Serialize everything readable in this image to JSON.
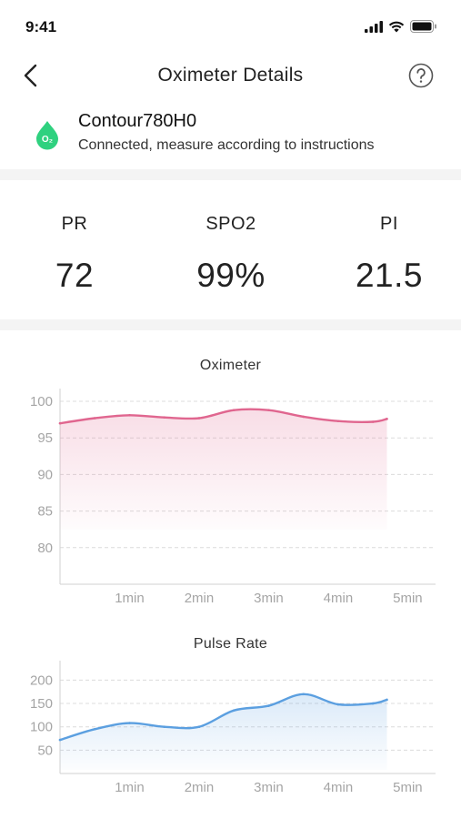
{
  "status_bar": {
    "time": "9:41",
    "signal_icon": "cellular-signal-icon",
    "wifi_icon": "wifi-icon",
    "battery_icon": "battery-icon"
  },
  "nav": {
    "title": "Oximeter Details",
    "back_icon": "chevron-left-icon",
    "help_icon": "question-circle-icon"
  },
  "device": {
    "icon": "o2-drop-icon",
    "icon_text": "O₂",
    "name": "Contour780H0",
    "status": "Connected, measure according to instructions"
  },
  "metrics": [
    {
      "label": "PR",
      "value": "72"
    },
    {
      "label": "SPO2",
      "value": "99%"
    },
    {
      "label": "PI",
      "value": "21.5"
    }
  ],
  "colors": {
    "oximeter_line": "#e0668f",
    "pulse_line": "#5b9fe0",
    "divider": "#f4f4f4"
  },
  "chart_data": [
    {
      "type": "line",
      "title": "Oximeter",
      "xlabel": "",
      "ylabel": "",
      "x_ticks": [
        "1min",
        "2min",
        "3min",
        "4min",
        "5min"
      ],
      "y_ticks": [
        100,
        95,
        90,
        85,
        80
      ],
      "ylim": [
        75,
        101
      ],
      "xlim": [
        0,
        5.4
      ],
      "grid": "horizontal-dashed",
      "area_fill": true,
      "series": [
        {
          "x": [
            0,
            0.5,
            1.0,
            1.5,
            2.0,
            2.5,
            3.0,
            3.5,
            4.0,
            4.5,
            4.7
          ],
          "y": [
            97.0,
            97.7,
            98.1,
            97.8,
            97.7,
            98.8,
            98.8,
            97.9,
            97.3,
            97.2,
            97.6
          ]
        }
      ]
    },
    {
      "type": "line",
      "title": "Pulse Rate",
      "xlabel": "",
      "ylabel": "",
      "x_ticks": [
        "1min",
        "2min",
        "3min",
        "4min",
        "5min"
      ],
      "y_ticks": [
        200,
        150,
        100,
        50
      ],
      "ylim": [
        0,
        230
      ],
      "xlim": [
        0,
        5.4
      ],
      "grid": "horizontal-dashed",
      "area_fill": true,
      "series": [
        {
          "x": [
            0,
            0.5,
            1.0,
            1.5,
            2.0,
            2.5,
            3.0,
            3.5,
            4.0,
            4.5,
            4.7
          ],
          "y": [
            72,
            95,
            108,
            100,
            100,
            135,
            145,
            170,
            148,
            150,
            158
          ]
        }
      ]
    }
  ]
}
